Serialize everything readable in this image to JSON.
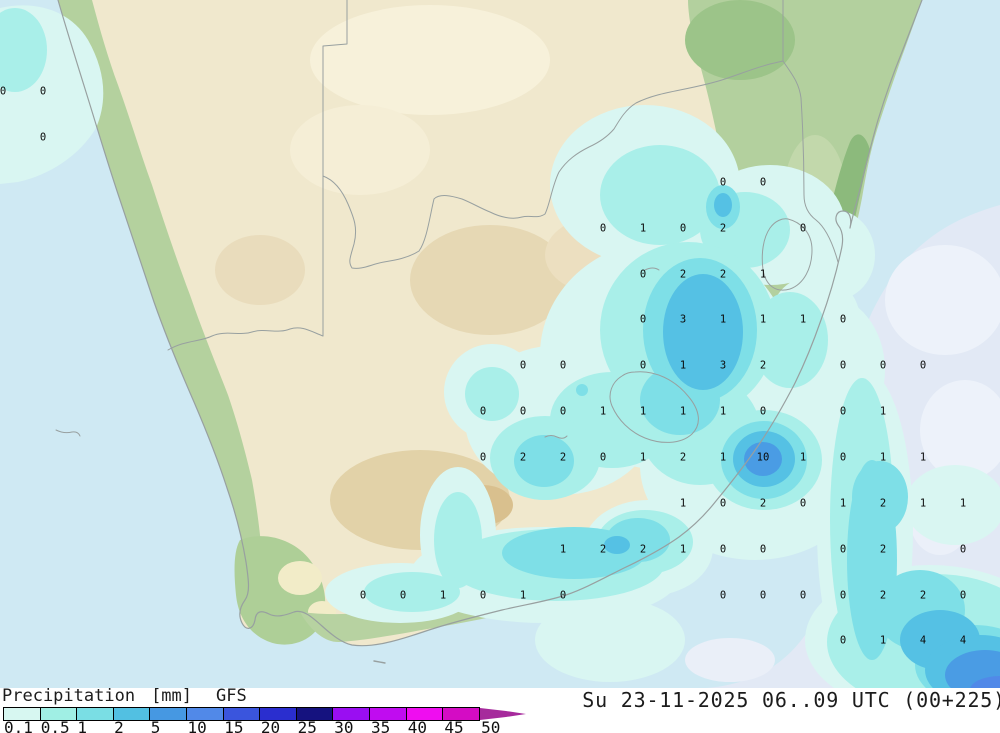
{
  "legend": {
    "title": "Precipitation",
    "unit": "[mm]",
    "model": "GFS",
    "timestamp": "Su 23-11-2025 06..09 UTC (00+225)",
    "ticks": [
      "0.1",
      "0.5",
      "1",
      "2",
      "5",
      "10",
      "15",
      "20",
      "25",
      "30",
      "35",
      "40",
      "45",
      "50"
    ],
    "colors": [
      "#d7f7f1",
      "#a0efe4",
      "#7adee4",
      "#52c0e2",
      "#4698e2",
      "#5189e8",
      "#3a55dd",
      "#2a2ecf",
      "#15127f",
      "#9a0ef2",
      "#c00cf0",
      "#ef0df0",
      "#d40cc4"
    ],
    "arrow_color": "#a62a9c"
  },
  "map": {
    "description": "GFS 3h precipitation forecast, southern Africa",
    "value_unit": "mm",
    "palette": {
      "ocean": "#cfe9f3",
      "ocean_trace": "#e2e9f5",
      "land": "#f0e8cd",
      "land_green": "#aecf97",
      "precip_bands": [
        "#d9f6f2",
        "#a9efe9",
        "#7edfe7",
        "#55c1e4",
        "#4a9ce4",
        "#5189e8"
      ]
    },
    "grid_values": [
      [
        3,
        92,
        "0"
      ],
      [
        43,
        92,
        "0"
      ],
      [
        43,
        138,
        "0"
      ],
      [
        723,
        183,
        "0"
      ],
      [
        763,
        183,
        "0"
      ],
      [
        603,
        229,
        "0"
      ],
      [
        643,
        229,
        "1"
      ],
      [
        683,
        229,
        "0"
      ],
      [
        723,
        229,
        "2"
      ],
      [
        803,
        229,
        "0"
      ],
      [
        643,
        275,
        "0"
      ],
      [
        683,
        275,
        "2"
      ],
      [
        723,
        275,
        "2"
      ],
      [
        763,
        275,
        "1"
      ],
      [
        643,
        320,
        "0"
      ],
      [
        683,
        320,
        "3"
      ],
      [
        723,
        320,
        "1"
      ],
      [
        763,
        320,
        "1"
      ],
      [
        803,
        320,
        "1"
      ],
      [
        843,
        320,
        "0"
      ],
      [
        523,
        366,
        "0"
      ],
      [
        563,
        366,
        "0"
      ],
      [
        643,
        366,
        "0"
      ],
      [
        683,
        366,
        "1"
      ],
      [
        723,
        366,
        "3"
      ],
      [
        763,
        366,
        "2"
      ],
      [
        843,
        366,
        "0"
      ],
      [
        883,
        366,
        "0"
      ],
      [
        923,
        366,
        "0"
      ],
      [
        483,
        412,
        "0"
      ],
      [
        523,
        412,
        "0"
      ],
      [
        563,
        412,
        "0"
      ],
      [
        603,
        412,
        "1"
      ],
      [
        643,
        412,
        "1"
      ],
      [
        683,
        412,
        "1"
      ],
      [
        723,
        412,
        "1"
      ],
      [
        763,
        412,
        "0"
      ],
      [
        843,
        412,
        "0"
      ],
      [
        883,
        412,
        "1"
      ],
      [
        483,
        458,
        "0"
      ],
      [
        523,
        458,
        "2"
      ],
      [
        563,
        458,
        "2"
      ],
      [
        603,
        458,
        "0"
      ],
      [
        643,
        458,
        "1"
      ],
      [
        683,
        458,
        "2"
      ],
      [
        723,
        458,
        "1"
      ],
      [
        763,
        458,
        "10"
      ],
      [
        803,
        458,
        "1"
      ],
      [
        843,
        458,
        "0"
      ],
      [
        883,
        458,
        "1"
      ],
      [
        923,
        458,
        "1"
      ],
      [
        683,
        504,
        "1"
      ],
      [
        723,
        504,
        "0"
      ],
      [
        763,
        504,
        "2"
      ],
      [
        803,
        504,
        "0"
      ],
      [
        843,
        504,
        "1"
      ],
      [
        883,
        504,
        "2"
      ],
      [
        923,
        504,
        "1"
      ],
      [
        963,
        504,
        "1"
      ],
      [
        563,
        550,
        "1"
      ],
      [
        603,
        550,
        "2"
      ],
      [
        643,
        550,
        "2"
      ],
      [
        683,
        550,
        "1"
      ],
      [
        723,
        550,
        "0"
      ],
      [
        763,
        550,
        "0"
      ],
      [
        843,
        550,
        "0"
      ],
      [
        883,
        550,
        "2"
      ],
      [
        963,
        550,
        "0"
      ],
      [
        363,
        596,
        "0"
      ],
      [
        403,
        596,
        "0"
      ],
      [
        443,
        596,
        "1"
      ],
      [
        483,
        596,
        "0"
      ],
      [
        523,
        596,
        "1"
      ],
      [
        563,
        596,
        "0"
      ],
      [
        723,
        596,
        "0"
      ],
      [
        763,
        596,
        "0"
      ],
      [
        803,
        596,
        "0"
      ],
      [
        843,
        596,
        "0"
      ],
      [
        883,
        596,
        "2"
      ],
      [
        923,
        596,
        "2"
      ],
      [
        963,
        596,
        "0"
      ],
      [
        843,
        641,
        "0"
      ],
      [
        883,
        641,
        "1"
      ],
      [
        923,
        641,
        "4"
      ],
      [
        963,
        641,
        "4"
      ]
    ]
  }
}
